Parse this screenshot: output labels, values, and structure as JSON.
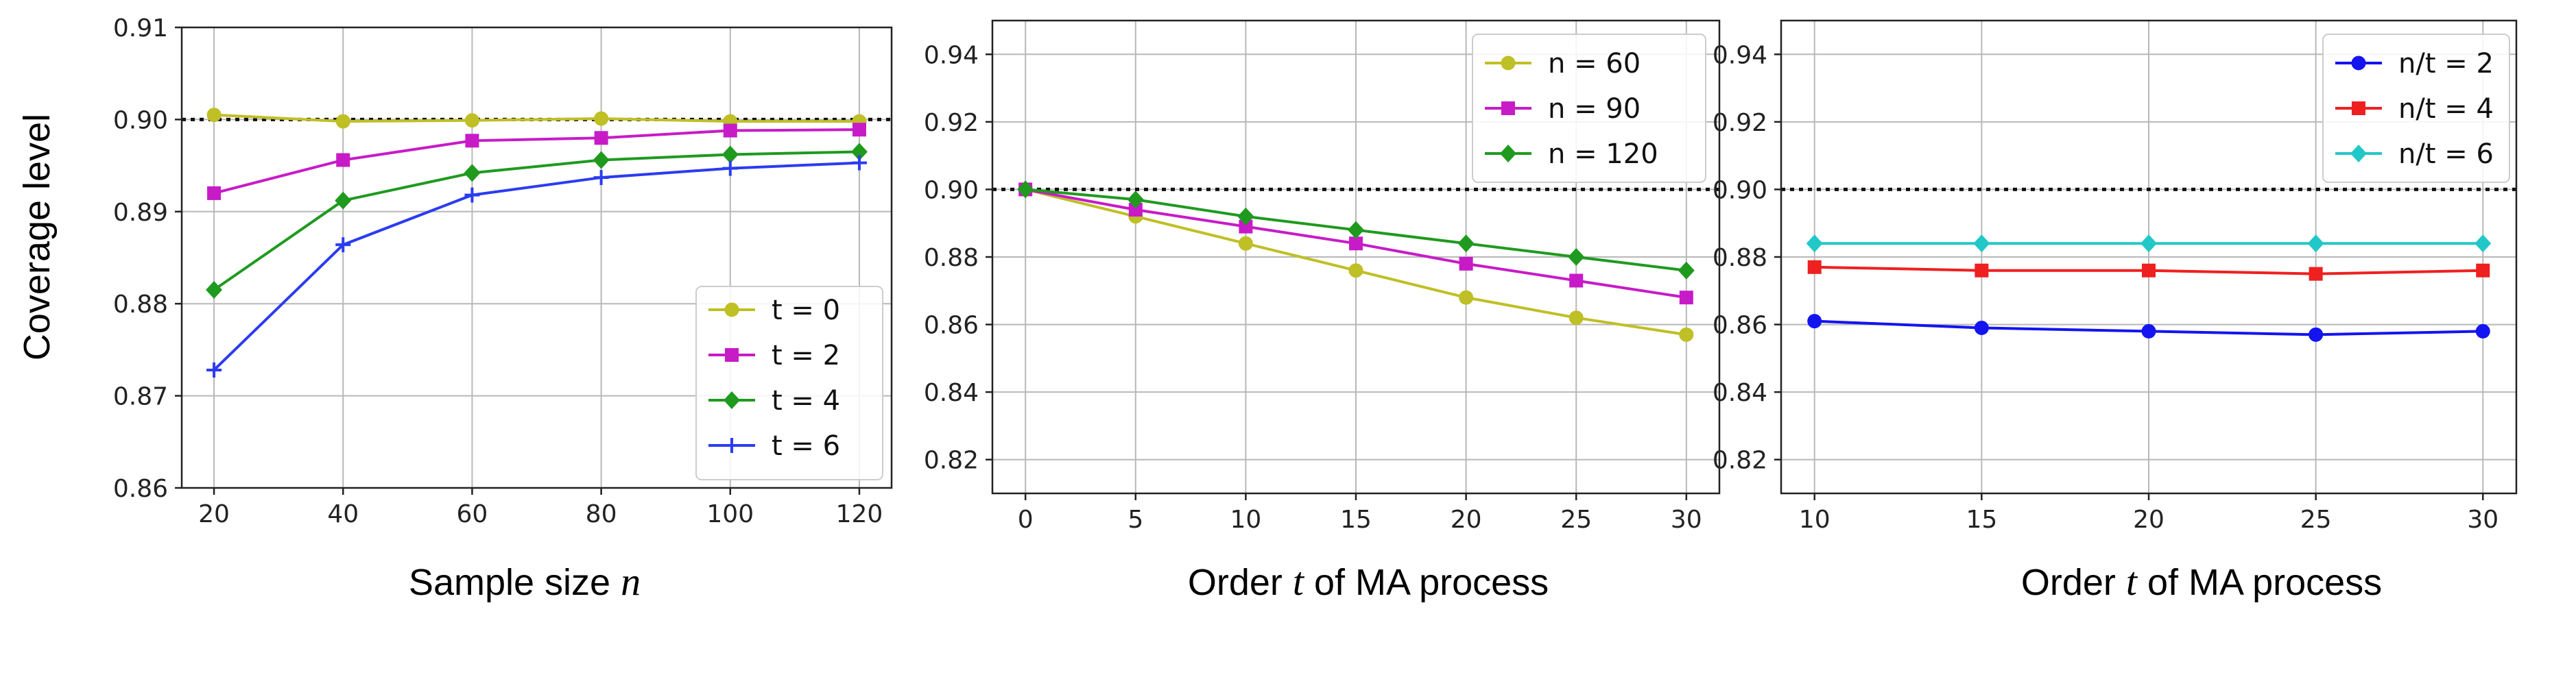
{
  "figure": {
    "ylabel": "Coverage level"
  },
  "chart_data": [
    {
      "type": "line",
      "xlabel_prefix": "Sample size ",
      "xlabel_var": "n",
      "xlabel_suffix": "",
      "x": [
        20,
        40,
        60,
        80,
        100,
        120
      ],
      "xticks": [
        20,
        40,
        60,
        80,
        100,
        120
      ],
      "xlim": [
        15,
        125
      ],
      "ylim": [
        0.86,
        0.91
      ],
      "yticks": [
        0.86,
        0.87,
        0.88,
        0.89,
        0.9,
        0.91
      ],
      "ytick_labels": [
        "0.86",
        "0.87",
        "0.88",
        "0.89",
        "0.90",
        "0.91"
      ],
      "reference_y": 0.9,
      "grid": true,
      "legend_position": "lower-right",
      "series": [
        {
          "name": "t = 0",
          "color": "#bfbf26",
          "marker": "circle",
          "values": [
            0.9005,
            0.8998,
            0.8999,
            0.9001,
            0.8998,
            0.8998
          ]
        },
        {
          "name": "t = 2",
          "color": "#c71bc7",
          "marker": "square",
          "values": [
            0.892,
            0.8956,
            0.8977,
            0.898,
            0.8988,
            0.8989
          ]
        },
        {
          "name": "t = 4",
          "color": "#1f9a1f",
          "marker": "diamond",
          "values": [
            0.8815,
            0.8912,
            0.8942,
            0.8956,
            0.8962,
            0.8965
          ]
        },
        {
          "name": "t = 6",
          "color": "#2b3cf0",
          "marker": "plus",
          "values": [
            0.8728,
            0.8864,
            0.8918,
            0.8937,
            0.8947,
            0.8953
          ]
        }
      ]
    },
    {
      "type": "line",
      "xlabel_prefix": "Order ",
      "xlabel_var": "t",
      "xlabel_suffix": " of MA process",
      "x": [
        0,
        5,
        10,
        15,
        20,
        25,
        30
      ],
      "xticks": [
        0,
        5,
        10,
        15,
        20,
        25,
        30
      ],
      "xlim": [
        -1.5,
        31.5
      ],
      "ylim": [
        0.81,
        0.95
      ],
      "yticks": [
        0.82,
        0.84,
        0.86,
        0.88,
        0.9,
        0.92,
        0.94
      ],
      "ytick_labels": [
        "0.82",
        "0.84",
        "0.86",
        "0.88",
        "0.90",
        "0.92",
        "0.94"
      ],
      "reference_y": 0.9,
      "grid": true,
      "legend_position": "top-right",
      "series": [
        {
          "name": "n = 60",
          "color": "#bfbf26",
          "marker": "circle",
          "values": [
            0.9,
            0.892,
            0.884,
            0.876,
            0.868,
            0.862,
            0.857
          ]
        },
        {
          "name": "n = 90",
          "color": "#c71bc7",
          "marker": "square",
          "values": [
            0.9,
            0.894,
            0.889,
            0.884,
            0.878,
            0.873,
            0.868
          ]
        },
        {
          "name": "n = 120",
          "color": "#1f9a1f",
          "marker": "diamond",
          "values": [
            0.9,
            0.897,
            0.892,
            0.888,
            0.884,
            0.88,
            0.876
          ]
        }
      ]
    },
    {
      "type": "line",
      "xlabel_prefix": "Order ",
      "xlabel_var": "t",
      "xlabel_suffix": " of MA process",
      "x": [
        10,
        15,
        20,
        25,
        30
      ],
      "xticks": [
        10,
        15,
        20,
        25,
        30
      ],
      "xlim": [
        9,
        31
      ],
      "ylim": [
        0.81,
        0.95
      ],
      "yticks": [
        0.82,
        0.84,
        0.86,
        0.88,
        0.9,
        0.92,
        0.94
      ],
      "ytick_labels": [
        "0.82",
        "0.84",
        "0.86",
        "0.88",
        "0.90",
        "0.92",
        "0.94"
      ],
      "reference_y": 0.9,
      "grid": true,
      "legend_position": "top-right",
      "series": [
        {
          "name": "n/t = 2",
          "color": "#1414f0",
          "marker": "circle",
          "values": [
            0.861,
            0.859,
            0.858,
            0.857,
            0.858
          ]
        },
        {
          "name": "n/t = 4",
          "color": "#ee2020",
          "marker": "square",
          "values": [
            0.877,
            0.876,
            0.876,
            0.875,
            0.876
          ]
        },
        {
          "name": "n/t = 6",
          "color": "#22c8c8",
          "marker": "diamond",
          "values": [
            0.884,
            0.884,
            0.884,
            0.884,
            0.884
          ]
        }
      ]
    }
  ]
}
